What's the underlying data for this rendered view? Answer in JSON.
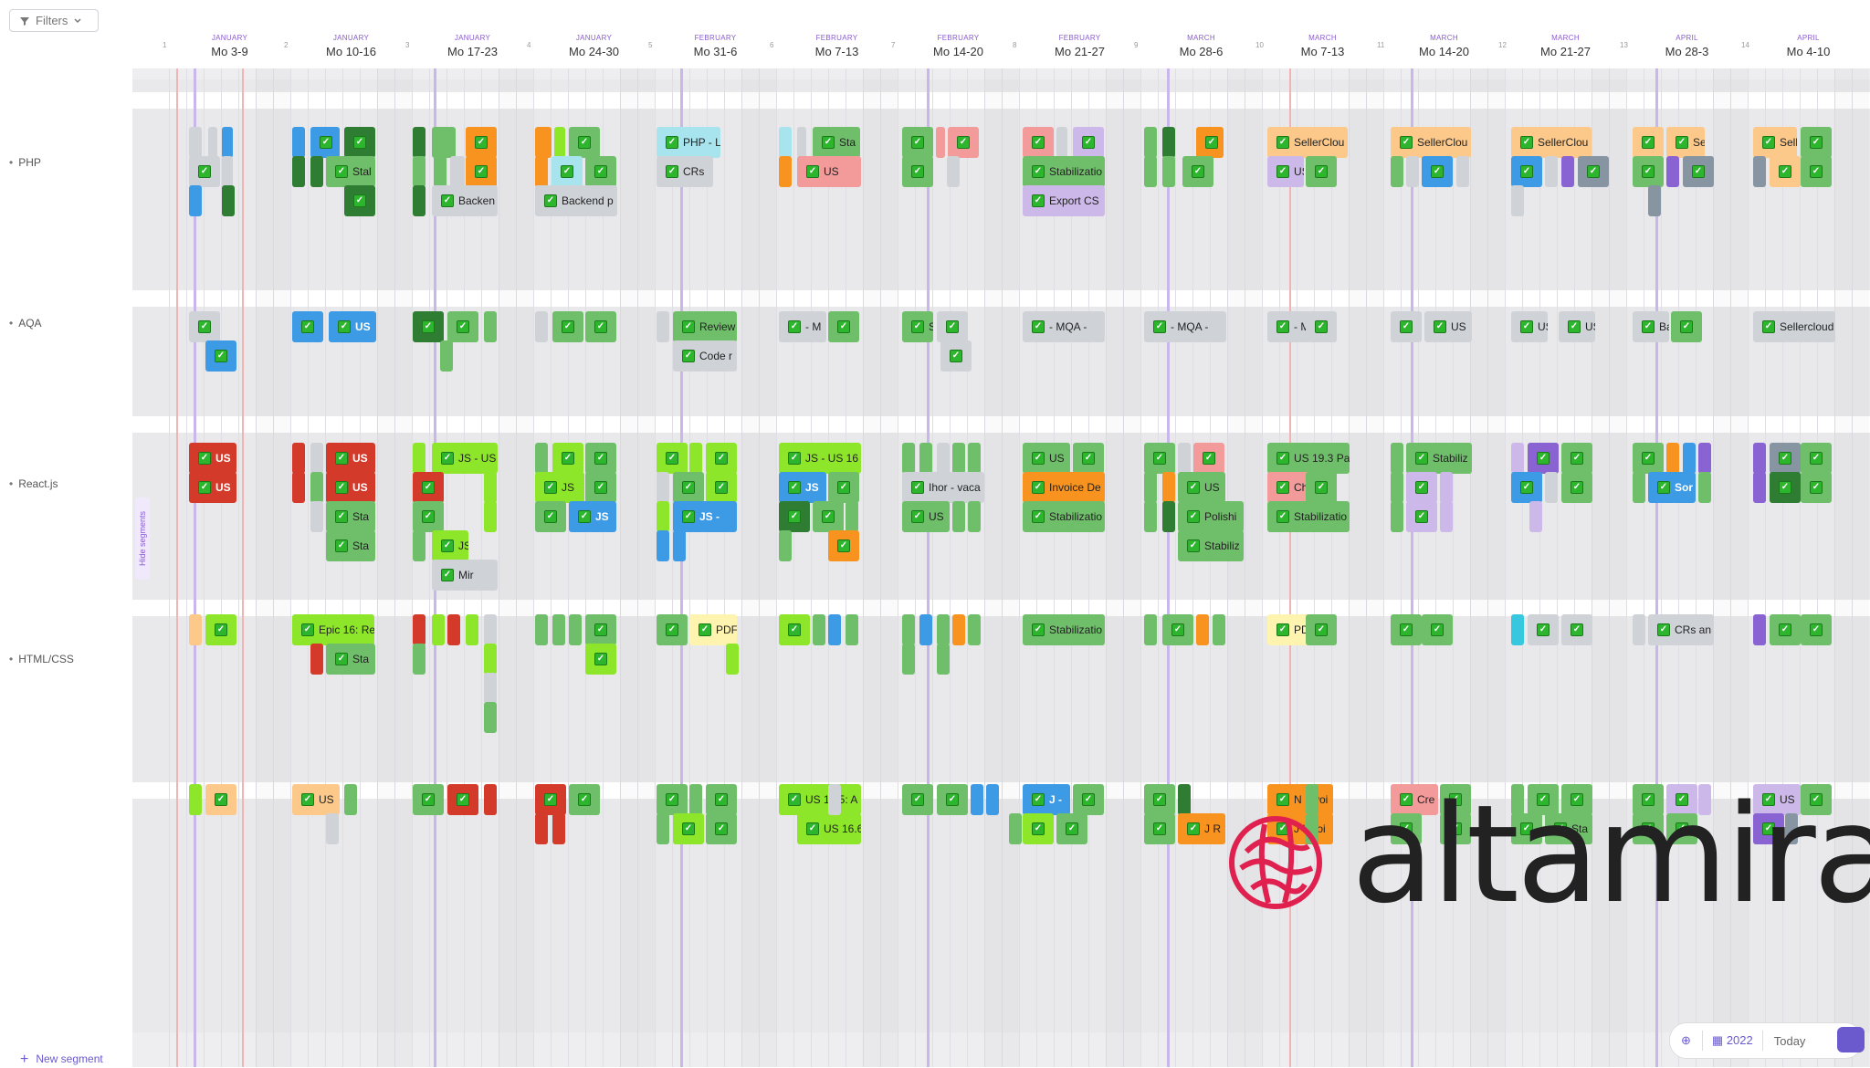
{
  "filters": {
    "label": "Filters",
    "icon": "funnel-icon",
    "chevron": "chevron-down-icon"
  },
  "segments": [
    {
      "label": "PHP"
    },
    {
      "label": "AQA"
    },
    {
      "label": "React.js"
    },
    {
      "label": "HTML/CSS"
    }
  ],
  "new_segment": "New segment",
  "hide_segments": "Hide segments",
  "weeks": [
    {
      "num": "1",
      "month": "JANUARY",
      "range": "Mo 3-9"
    },
    {
      "num": "2",
      "month": "JANUARY",
      "range": "Mo 10-16"
    },
    {
      "num": "3",
      "month": "JANUARY",
      "range": "Mo 17-23"
    },
    {
      "num": "4",
      "month": "JANUARY",
      "range": "Mo 24-30"
    },
    {
      "num": "5",
      "month": "FEBRUARY",
      "range": "Mo 31-6"
    },
    {
      "num": "6",
      "month": "FEBRUARY",
      "range": "Mo 7-13"
    },
    {
      "num": "7",
      "month": "FEBRUARY",
      "range": "Mo 14-20"
    },
    {
      "num": "8",
      "month": "FEBRUARY",
      "range": "Mo 21-27"
    },
    {
      "num": "9",
      "month": "MARCH",
      "range": "Mo 28-6"
    },
    {
      "num": "10",
      "month": "MARCH",
      "range": "Mo 7-13"
    },
    {
      "num": "11",
      "month": "MARCH",
      "range": "Mo 14-20"
    },
    {
      "num": "12",
      "month": "MARCH",
      "range": "Mo 21-27"
    },
    {
      "num": "13",
      "month": "APRIL",
      "range": "Mo 28-3"
    },
    {
      "num": "14",
      "month": "APRIL",
      "range": "Mo 4-10"
    }
  ],
  "cards": {
    "php": [
      "PHP - L",
      "Sta",
      "US",
      "CRs",
      "Stal",
      "Backen",
      "Backend p",
      "Stabilizatio",
      "Export CS",
      "SellerClou",
      "SellerClou",
      "SellerClou",
      "Sell",
      "Sell",
      "US"
    ],
    "aqa": [
      "US",
      "Review",
      "Code r",
      "- M",
      "Stal",
      "- MQA -",
      "- MQA -",
      "- M",
      "US",
      "US",
      "US",
      "Bac",
      "Sellercloud"
    ],
    "react": [
      "US",
      "US",
      "US",
      "US",
      "JS - US",
      "JS - US 16",
      "JS",
      "JS",
      "JS",
      "JS -",
      "Sta",
      "Sta",
      "JS",
      "Mir",
      "Ihor - vaca",
      "US",
      "US",
      "Invoice De",
      "Stabilizatio",
      "US",
      "Polishi",
      "Stabiliz",
      "US 19.3 Pa",
      "Cha",
      "Stabilizatio",
      "Stabiliz",
      "Sor"
    ],
    "html": [
      "Epic 16: Re",
      "Sta",
      "PDF",
      "Stabilizatio",
      "PDF",
      "CRs an"
    ],
    "extra": [
      "US",
      "US 16.5: A",
      "US 16.6",
      "J -",
      "N Invoi",
      "J Invoi",
      "J R",
      "Cre",
      "Sta",
      "US"
    ]
  },
  "logo": {
    "text": "altamira."
  },
  "controls": {
    "year": "2022",
    "today": "Today",
    "zoom_icon": "zoom-in-icon",
    "calendar_icon": "calendar-icon"
  },
  "colors": {
    "accent": "#6a5acd",
    "green": "#5cb85c",
    "lightgreen": "#8cd27a",
    "lime": "#8ee62a",
    "blue": "#3498db",
    "orange": "#f7931e",
    "red": "#d9302c",
    "peach": "#fcc98a",
    "lav": "#c9b6ea",
    "pink": "#f39a9a",
    "gray": "#cfd3d8",
    "darkgreen": "#2e7d32",
    "logo_red": "#e0204f"
  }
}
